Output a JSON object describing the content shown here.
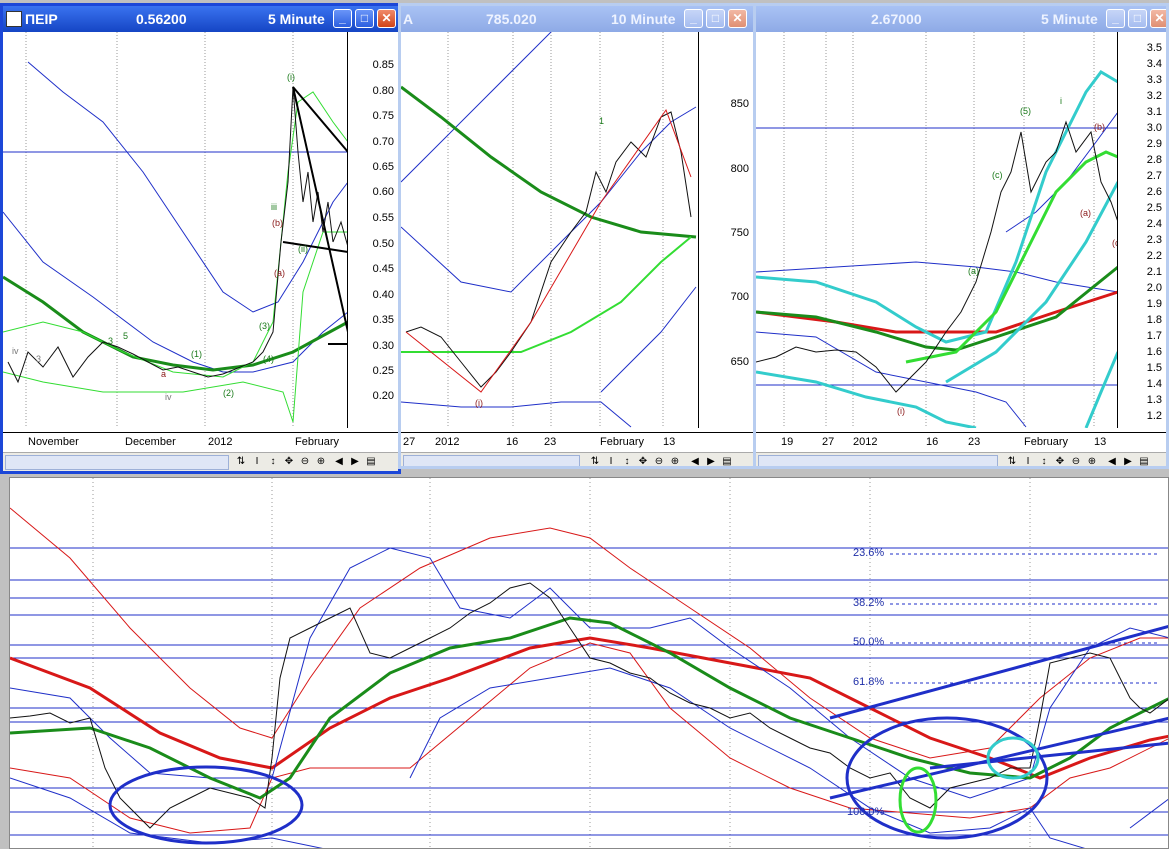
{
  "windows": [
    {
      "id": "w1",
      "symbol": "ΠΕΙΡ",
      "price": "0.56200",
      "interval": "5 Minute",
      "y_labels": [
        "0.85",
        "0.80",
        "0.75",
        "0.70",
        "0.65",
        "0.60",
        "0.55",
        "0.50",
        "0.45",
        "0.40",
        "0.35",
        "0.30",
        "0.25",
        "0.20"
      ],
      "x_labels": [
        "November",
        "December",
        "2012",
        "February"
      ]
    },
    {
      "id": "w2",
      "symbol": "A",
      "price": "785.020",
      "interval": "10 Minute",
      "y_labels": [
        "850",
        "800",
        "750",
        "700",
        "650"
      ],
      "x_labels": [
        "27",
        "2012",
        "16",
        "23",
        "February",
        "13"
      ]
    },
    {
      "id": "w3",
      "symbol": "",
      "price": "2.67000",
      "interval": "5 Minute",
      "y_labels": [
        "3.5",
        "3.4",
        "3.3",
        "3.2",
        "3.1",
        "3.0",
        "2.9",
        "2.8",
        "2.7",
        "2.6",
        "2.5",
        "2.4",
        "2.3",
        "2.2",
        "2.1",
        "2.0",
        "1.9",
        "1.8",
        "1.7",
        "1.6",
        "1.5",
        "1.4",
        "1.3",
        "1.2"
      ],
      "x_labels": [
        "19",
        "27",
        "2012",
        "16",
        "23",
        "February",
        "13"
      ]
    }
  ],
  "bottom_chart": {
    "fib_labels": [
      "23.6%",
      "38.2%",
      "50.0%",
      "61.8%",
      "100.0%"
    ]
  },
  "toolbar_icons": [
    "sync-icon",
    "cursor-icon",
    "move-icon",
    "crosshair-icon",
    "zoom-out-icon",
    "zoom-in-icon",
    "prev-icon",
    "next-icon",
    "menu-icon"
  ],
  "colors": {
    "title_active": "#1c47d8",
    "price_line": "#000000",
    "ma_green": "#1a8c1a",
    "ma_red": "#d81818",
    "band_blue": "#1f2fc8",
    "band_lightgreen": "#33dd33",
    "band_cyan": "#33cccc"
  }
}
